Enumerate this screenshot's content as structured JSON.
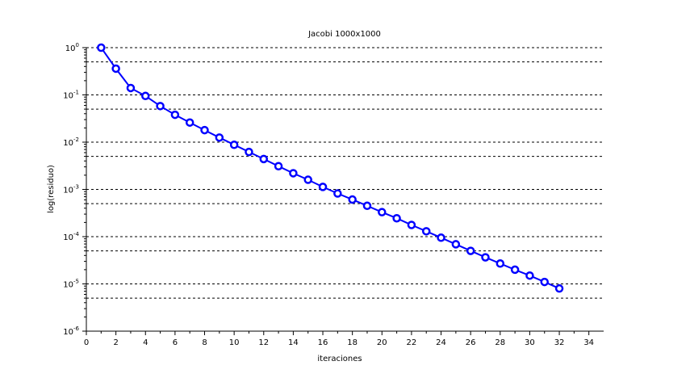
{
  "chart_data": {
    "type": "line",
    "title": "Jacobi 1000x1000",
    "xlabel": "iteraciones",
    "ylabel": "log(residuo)",
    "xlim": [
      0,
      35
    ],
    "ylim": [
      1e-06,
      1
    ],
    "yscale": "log",
    "x_ticks": [
      0,
      2,
      4,
      6,
      8,
      10,
      12,
      14,
      16,
      18,
      20,
      22,
      24,
      26,
      28,
      30,
      32,
      34
    ],
    "y_ticks": [
      {
        "base": "10",
        "exp": "-6",
        "value": 1e-06
      },
      {
        "base": "10",
        "exp": "-5",
        "value": 1e-05
      },
      {
        "base": "10",
        "exp": "-4",
        "value": 0.0001
      },
      {
        "base": "10",
        "exp": "-3",
        "value": 0.001
      },
      {
        "base": "10",
        "exp": "-2",
        "value": 0.01
      },
      {
        "base": "10",
        "exp": "-1",
        "value": 0.1
      },
      {
        "base": "10",
        "exp": "0",
        "value": 1
      }
    ],
    "grid": "horizontal dashed",
    "series": [
      {
        "color": "#0000ff",
        "marker": "circle",
        "x": [
          1,
          2,
          3,
          4,
          5,
          6,
          7,
          8,
          9,
          10,
          11,
          12,
          13,
          14,
          15,
          16,
          17,
          18,
          19,
          20,
          21,
          22,
          23,
          24,
          25,
          26,
          27,
          28,
          29,
          30,
          31,
          32
        ],
        "y": [
          1.0,
          0.36,
          0.14,
          0.095,
          0.058,
          0.038,
          0.026,
          0.018,
          0.0125,
          0.0088,
          0.0062,
          0.0044,
          0.0031,
          0.0022,
          0.0016,
          0.00113,
          0.00082,
          0.00061,
          0.00045,
          0.00033,
          0.000245,
          0.000177,
          0.00013,
          9.5e-05,
          6.9e-05,
          5e-05,
          3.65e-05,
          2.7e-05,
          2e-05,
          1.5e-05,
          1.1e-05,
          8e-06
        ]
      }
    ]
  }
}
